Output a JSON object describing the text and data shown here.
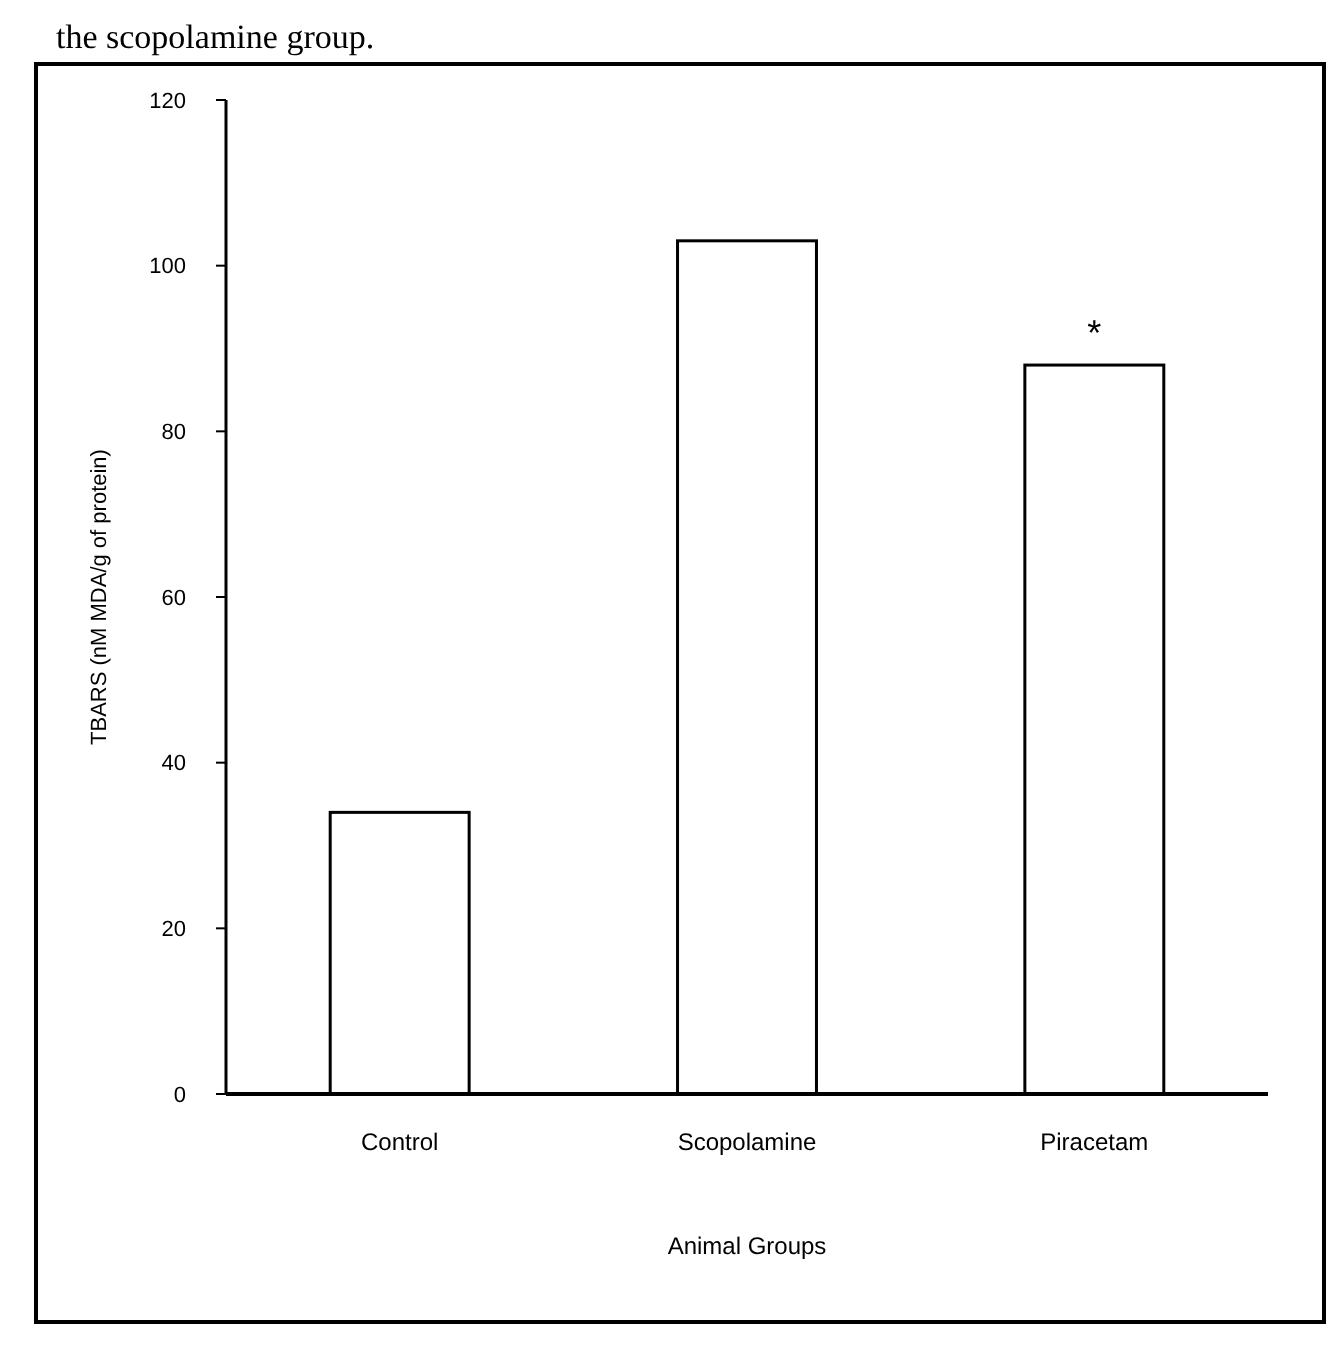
{
  "chart_data": {
    "type": "bar",
    "xlabel": "Animal Groups",
    "ylabel": "TBARS (nM MDA/g of protein)",
    "categories": [
      "Control",
      "Scopolamine",
      "Piracetam"
    ],
    "values": [
      34,
      103,
      88
    ],
    "color": "#ffffff",
    "ylim": [
      0,
      120
    ],
    "yticks": [
      0,
      20,
      40,
      60,
      80,
      100,
      120
    ],
    "annotations": [
      {
        "text": "*",
        "x": "Piracetam",
        "y": 88
      },
      "the scopolamine group."
    ]
  }
}
